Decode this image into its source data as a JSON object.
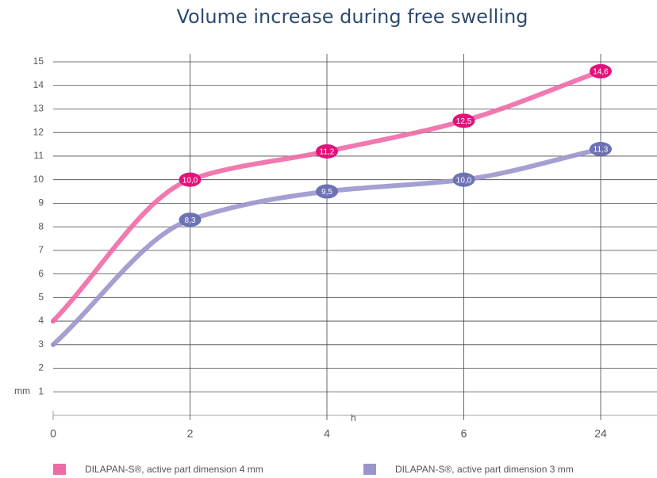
{
  "chart_data": {
    "type": "line",
    "title": "Volume increase during free swelling",
    "categories": [
      "0",
      "2",
      "4",
      "6",
      "24"
    ],
    "x_unit": "h",
    "y_unit": "mm",
    "ylim": [
      0,
      15
    ],
    "yticks": [
      1,
      2,
      3,
      4,
      5,
      6,
      7,
      8,
      9,
      10,
      11,
      12,
      13,
      14,
      15
    ],
    "grid": true,
    "series": [
      {
        "name": "DILAPAN-S®, active part dimension 4 mm",
        "color": "#f06aa6",
        "label_color": "#e3127a",
        "values": [
          4,
          10.0,
          11.2,
          12.5,
          14.6
        ],
        "value_labels": [
          null,
          "10,0",
          "11,2",
          "12,5",
          "14,6"
        ]
      },
      {
        "name": "DILAPAN-S®, active part dimension 3 mm",
        "color": "#9a96cc",
        "label_color": "#6d72b4",
        "values": [
          3,
          8.3,
          9.5,
          10.0,
          11.3
        ],
        "value_labels": [
          null,
          "8,3",
          "9,5",
          "10,0",
          "11,3"
        ]
      }
    ]
  }
}
